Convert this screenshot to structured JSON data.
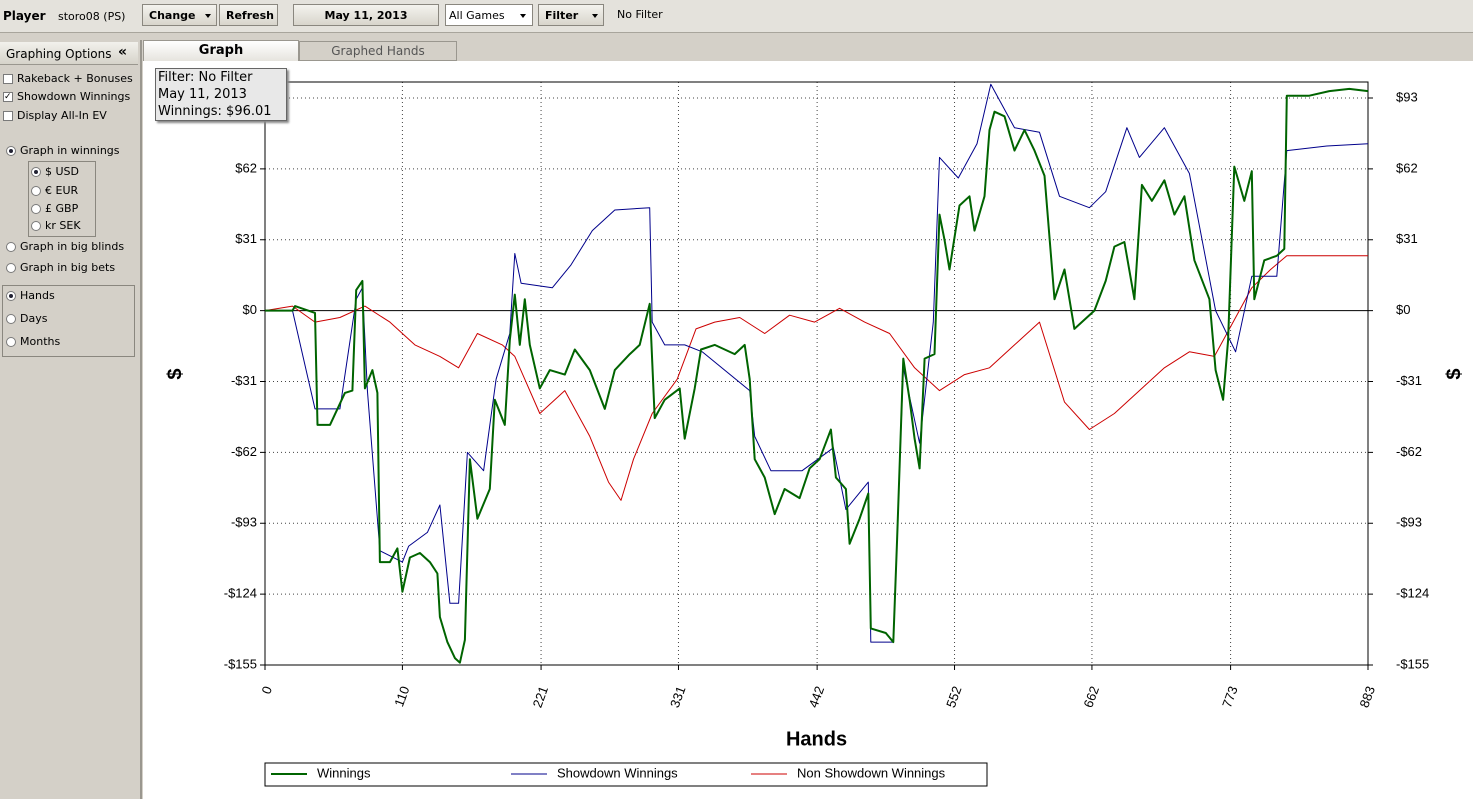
{
  "toolbar": {
    "player_label": "Player",
    "player": "storo08 (PS)",
    "change": "Change",
    "refresh": "Refresh",
    "date": "May 11, 2013",
    "games": "All Games",
    "filter": "Filter",
    "filter_status": "No Filter"
  },
  "tabs": [
    "Graph",
    "Graphed Hands"
  ],
  "sidebar": {
    "title": "Graphing Options",
    "collapse": "«",
    "options": [
      {
        "label": "Rakeback + Bonuses",
        "checked": false
      },
      {
        "label": "Showdown Winnings",
        "checked": true
      },
      {
        "label": "Display All-In EV",
        "checked": false
      }
    ],
    "units": [
      {
        "label": "Graph in winnings",
        "selected": true
      },
      {
        "label": "Graph in big blinds",
        "selected": false
      },
      {
        "label": "Graph in big bets",
        "selected": false
      }
    ],
    "currencies": [
      {
        "label": "$ USD",
        "selected": true
      },
      {
        "label": "€ EUR",
        "selected": false
      },
      {
        "label": "£ GBP",
        "selected": false
      },
      {
        "label": "kr SEK",
        "selected": false
      }
    ],
    "periods": [
      {
        "label": "Hands",
        "selected": true
      },
      {
        "label": "Days",
        "selected": false
      },
      {
        "label": "Months",
        "selected": false
      }
    ]
  },
  "chart_data": {
    "type": "line",
    "info": [
      "Filter: No Filter",
      "May 11, 2013",
      "Winnings: $96.01"
    ],
    "x_label": "Hands",
    "y_label": "$",
    "grid": true,
    "legend": "bottom",
    "xlim": [
      0,
      883
    ],
    "xticks": [
      0,
      110,
      221,
      331,
      442,
      552,
      662,
      773,
      883
    ],
    "ylim": [
      -155,
      100
    ],
    "yticks": [
      {
        "value": 93,
        "label": "$93"
      },
      {
        "value": 62,
        "label": "$62"
      },
      {
        "value": 31,
        "label": "$31"
      },
      {
        "value": 0,
        "label": "$0"
      },
      {
        "value": -31,
        "label": "-$31"
      },
      {
        "value": -62,
        "label": "-$62"
      },
      {
        "value": -93,
        "label": "-$93"
      },
      {
        "value": -124,
        "label": "-$124"
      },
      {
        "value": -155,
        "label": "-$155"
      }
    ],
    "series": [
      {
        "name": "Winnings",
        "color": "#006400",
        "width": 2,
        "x": [
          0,
          22,
          24,
          40,
          42,
          52,
          64,
          70,
          73,
          78,
          80,
          86,
          90,
          92,
          100,
          106,
          110,
          116,
          124,
          132,
          138,
          140,
          146,
          152,
          156,
          160,
          164,
          170,
          180,
          184,
          192,
          196,
          200,
          204,
          208,
          212,
          220,
          228,
          240,
          248,
          260,
          272,
          280,
          292,
          300,
          308,
          312,
          320,
          332,
          336,
          344,
          349,
          360,
          376,
          384,
          388,
          392,
          400,
          408,
          416,
          428,
          436,
          444,
          453,
          457,
          465,
          468,
          476,
          483,
          485,
          497,
          503,
          506,
          511,
          516,
          520,
          524,
          528,
          536,
          540,
          544,
          548,
          556,
          564,
          568,
          576,
          580,
          584,
          592,
          600,
          608,
          616,
          624,
          632,
          640,
          648,
          656,
          664,
          673,
          680,
          688,
          696,
          702,
          710,
          720,
          728,
          736,
          744,
          756,
          761,
          767,
          771,
          776,
          784,
          790,
          792,
          800,
          810,
          816,
          818,
          836,
          852,
          868,
          883
        ],
        "values": [
          0,
          0,
          2,
          -1,
          -50,
          -50,
          -36,
          -35,
          9,
          13,
          -34,
          -26,
          -36,
          -110,
          -110,
          -104,
          -123,
          -108,
          -106,
          -110,
          -115,
          -134,
          -145,
          -152,
          -154,
          -144,
          -65,
          -91,
          -78,
          -39,
          -50,
          -13,
          7,
          -15,
          5,
          -15,
          -34,
          -26,
          -28,
          -17,
          -26,
          -43,
          -26,
          -19,
          -15,
          3,
          -47,
          -39,
          -34,
          -56,
          -34,
          -17,
          -15,
          -19,
          -15,
          -30,
          -65,
          -73,
          -89,
          -78,
          -82,
          -69,
          -65,
          -52,
          -73,
          -78,
          -102,
          -91,
          -80,
          -139,
          -141,
          -145,
          -100,
          -21,
          -39,
          -56,
          -69,
          -21,
          -19,
          42,
          31,
          18,
          46,
          50,
          35,
          50,
          79,
          87,
          85,
          70,
          79,
          70,
          59,
          5,
          18,
          -8,
          -4,
          0,
          13,
          28,
          30,
          5,
          55,
          48,
          57,
          42,
          50,
          22,
          5,
          -26,
          -39,
          -13,
          63,
          48,
          61,
          5,
          22,
          24,
          27,
          94,
          94,
          96,
          97,
          96.01
        ]
      },
      {
        "name": "Showdown Winnings",
        "color": "#00008b",
        "width": 1,
        "x": [
          0,
          22,
          40,
          60,
          73,
          78,
          82,
          92,
          110,
          115,
          130,
          140,
          148,
          155,
          162,
          175,
          185,
          196,
          200,
          205,
          230,
          245,
          262,
          280,
          308,
          310,
          320,
          336,
          350,
          388,
          392,
          405,
          430,
          455,
          465,
          483,
          485,
          503,
          511,
          524,
          535,
          540,
          555,
          570,
          581,
          600,
          620,
          636,
          660,
          673,
          690,
          700,
          720,
          740,
          761,
          777,
          790,
          810,
          818,
          850,
          883
        ],
        "values": [
          0,
          0,
          -43,
          -43,
          5,
          10,
          -35,
          -105,
          -110,
          -103,
          -97,
          -85,
          -128,
          -128,
          -62,
          -70,
          -30,
          -10,
          25,
          12,
          10,
          20,
          35,
          44,
          45,
          -5,
          -15,
          -15,
          -18,
          -35,
          -55,
          -70,
          -70,
          -60,
          -87,
          -75,
          -145,
          -145,
          -25,
          -58,
          -5,
          67,
          58,
          73,
          99,
          80,
          78,
          50,
          45,
          52,
          80,
          67,
          80,
          60,
          0,
          -18,
          15,
          15,
          70,
          72,
          73
        ]
      },
      {
        "name": "Non Showdown Winnings",
        "color": "#cc0000",
        "width": 1,
        "x": [
          0,
          22,
          40,
          60,
          80,
          100,
          120,
          140,
          155,
          170,
          190,
          200,
          220,
          240,
          260,
          275,
          285,
          295,
          310,
          330,
          345,
          360,
          380,
          400,
          420,
          440,
          460,
          480,
          500,
          520,
          540,
          560,
          580,
          600,
          620,
          640,
          660,
          680,
          700,
          720,
          740,
          760,
          775,
          790,
          805,
          818,
          850,
          883
        ],
        "values": [
          0,
          2,
          -5,
          -3,
          2,
          -5,
          -15,
          -20,
          -25,
          -10,
          -15,
          -20,
          -45,
          -35,
          -55,
          -75,
          -83,
          -65,
          -45,
          -30,
          -8,
          -5,
          -3,
          -10,
          -2,
          -5,
          1,
          -5,
          -10,
          -25,
          -35,
          -28,
          -25,
          -15,
          -5,
          -40,
          -52,
          -45,
          -35,
          -25,
          -18,
          -20,
          -5,
          10,
          18,
          24,
          24,
          24
        ]
      }
    ]
  }
}
